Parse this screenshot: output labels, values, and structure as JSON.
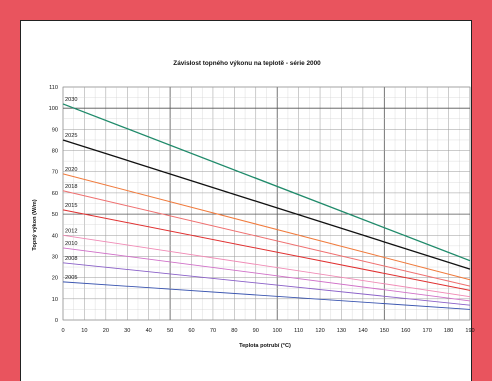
{
  "chart_data": {
    "type": "line",
    "title": "Závislost topného výkonu na teplotě - série 2000",
    "xlabel": "Teplota potrubí (°C)",
    "ylabel": "Topný výkon (W/m)",
    "xlim": [
      0,
      190
    ],
    "ylim": [
      0,
      110
    ],
    "xticks": [
      "0",
      "10",
      "20",
      "30",
      "40",
      "50",
      "60",
      "70",
      "80",
      "90",
      "100",
      "110",
      "120",
      "130",
      "140",
      "150",
      "160",
      "170",
      "180",
      "190"
    ],
    "yticks": [
      "0",
      "10",
      "20",
      "30",
      "40",
      "50",
      "60",
      "70",
      "80",
      "90",
      "100",
      "110"
    ],
    "grid": true,
    "series": [
      {
        "name": "2030",
        "color": "#1f8a6a",
        "width": 1.3,
        "x": [
          0,
          190
        ],
        "y": [
          102,
          28
        ]
      },
      {
        "name": "2025",
        "color": "#111111",
        "width": 1.3,
        "x": [
          0,
          190
        ],
        "y": [
          85,
          24
        ]
      },
      {
        "name": "2020",
        "color": "#f07a3c",
        "width": 1.0,
        "x": [
          0,
          190
        ],
        "y": [
          69,
          19
        ]
      },
      {
        "name": "2018",
        "color": "#ef6f6f",
        "width": 1.0,
        "x": [
          0,
          190
        ],
        "y": [
          61,
          16
        ]
      },
      {
        "name": "2015",
        "color": "#e03030",
        "width": 1.0,
        "x": [
          0,
          190
        ],
        "y": [
          52,
          14
        ]
      },
      {
        "name": "2012",
        "color": "#f08ab5",
        "width": 0.9,
        "x": [
          0,
          190
        ],
        "y": [
          40,
          11
        ]
      },
      {
        "name": "2010",
        "color": "#d070c8",
        "width": 0.9,
        "x": [
          0,
          190
        ],
        "y": [
          34,
          9
        ]
      },
      {
        "name": "2008",
        "color": "#8a60c8",
        "width": 0.9,
        "x": [
          0,
          190
        ],
        "y": [
          27,
          7
        ]
      },
      {
        "name": "2005",
        "color": "#3a55b0",
        "width": 0.9,
        "x": [
          0,
          190
        ],
        "y": [
          18,
          5
        ]
      }
    ]
  }
}
